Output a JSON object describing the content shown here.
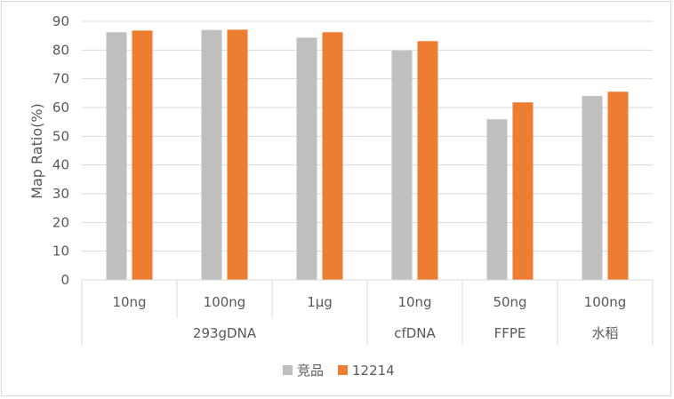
{
  "chart_data": {
    "type": "bar",
    "ylabel": "Map Ratio(%)",
    "ylim": [
      0,
      90
    ],
    "yticks": [
      0,
      10,
      20,
      30,
      40,
      50,
      60,
      70,
      80,
      90
    ],
    "grid": true,
    "legend_position": "bottom",
    "categories": [
      "10ng",
      "100ng",
      "1μg",
      "10ng",
      "50ng",
      "100ng"
    ],
    "groups": [
      {
        "label": "293gDNA",
        "categories": [
          "10ng",
          "100ng",
          "1μg"
        ]
      },
      {
        "label": "cfDNA",
        "categories": [
          "10ng"
        ]
      },
      {
        "label": "FFPE",
        "categories": [
          "50ng"
        ]
      },
      {
        "label": "水稻",
        "categories": [
          "100ng"
        ]
      }
    ],
    "series": [
      {
        "name": "竞品",
        "color": "#bfbfbf",
        "values": [
          86.2,
          87.0,
          84.3,
          79.8,
          55.9,
          64.0
        ]
      },
      {
        "name": "12214",
        "color": "#ed7d31",
        "values": [
          86.8,
          87.1,
          86.2,
          83.1,
          61.8,
          65.5
        ]
      }
    ]
  }
}
